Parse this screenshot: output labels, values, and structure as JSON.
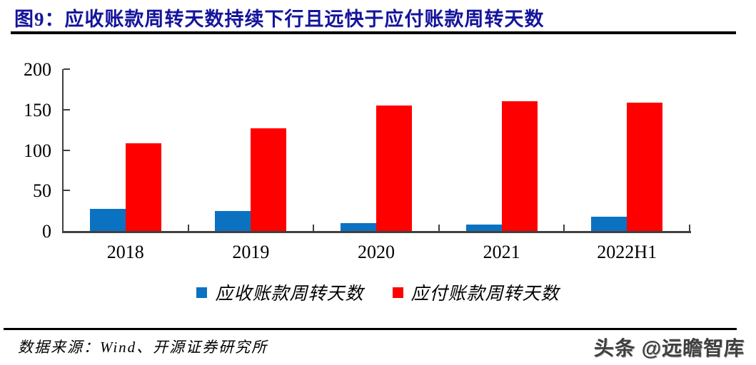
{
  "header": {
    "title": "图9：应收账款周转天数持续下行且远快于应付账款周转天数"
  },
  "chart_data": {
    "type": "bar",
    "categories": [
      "2018",
      "2019",
      "2020",
      "2021",
      "2022H1"
    ],
    "series": [
      {
        "name": "应收账款周转天数",
        "color": "#0b72c2",
        "values": [
          27,
          25,
          10,
          8,
          18
        ]
      },
      {
        "name": "应付账款周转天数",
        "color": "#fe0000",
        "values": [
          108,
          127,
          155,
          160,
          159
        ]
      }
    ],
    "title": "",
    "xlabel": "",
    "ylabel": "",
    "ylim": [
      0,
      200
    ],
    "yticks": [
      0,
      50,
      100,
      150,
      200
    ],
    "grid": false,
    "legend_position": "bottom"
  },
  "legend": {
    "items": [
      {
        "label": "应收账款周转天数",
        "color": "#0b72c2"
      },
      {
        "label": "应付账款周转天数",
        "color": "#fe0000"
      }
    ]
  },
  "footer": {
    "source": "数据来源：Wind、开源证券研究所",
    "watermark": "头条 @远瞻智库"
  },
  "colors": {
    "title_navy": "#14149b",
    "axis": "#404040",
    "bar_blue": "#0b72c2",
    "bar_red": "#fe0000"
  }
}
